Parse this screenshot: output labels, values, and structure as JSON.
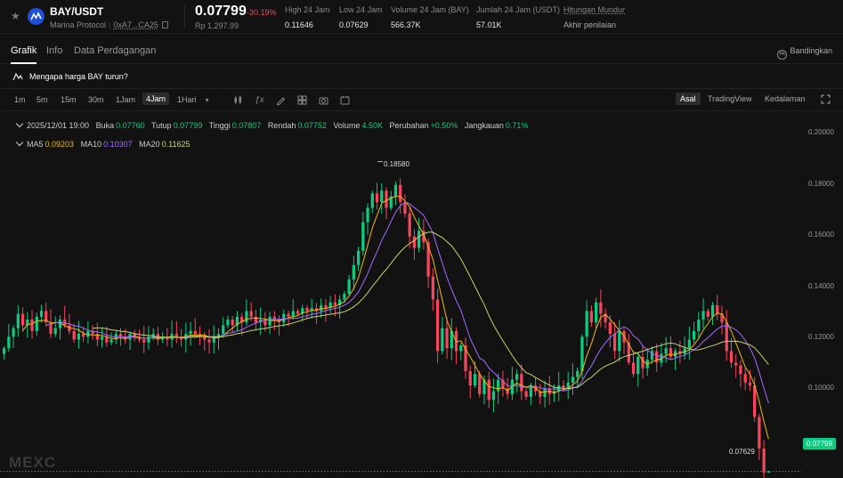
{
  "header": {
    "pair": "BAY/USDT",
    "protocol": "Marina Protocol",
    "address": "0xA7...CA25",
    "price": "0.07799",
    "change": "-30.19%",
    "idr_price": "Rp 1,297.99",
    "stats": [
      {
        "label": "High 24 Jam",
        "value": "0.11646"
      },
      {
        "label": "Low 24 Jam",
        "value": "0.07629"
      },
      {
        "label": "Volume 24 Jam (BAY)",
        "value": "566.37K"
      },
      {
        "label": "Jumlah 24 Jam (USDT)",
        "value": "57.01K"
      },
      {
        "label": "Hitungan Mundur",
        "value": "Akhir penilaian"
      }
    ]
  },
  "tabs": {
    "items": [
      "Grafik",
      "Info",
      "Data Perdagangan"
    ],
    "active": "Grafik",
    "compare": "Bandingkan",
    "compare_icon": "PK"
  },
  "why": {
    "text": "Mengapa harga BAY turun?"
  },
  "toolbar": {
    "timeframes": [
      "1m",
      "5m",
      "15m",
      "30m",
      "1Jam",
      "4Jam",
      "1Hari"
    ],
    "active_timeframe": "4Jam",
    "tools": [
      "candle-type-icon",
      "indicator-icon",
      "draw-icon",
      "layout-icon",
      "camera-icon",
      "settings-icon"
    ],
    "views": [
      "Asal",
      "TradingView",
      "Kedalaman"
    ],
    "active_view": "Asal"
  },
  "ohlc": {
    "date": "2025/12/01 19:00",
    "buka_label": "Buka",
    "buka": "0.07760",
    "tutup_label": "Tutup",
    "tutup": "0.07799",
    "tinggi_label": "Tinggi",
    "tinggi": "0.07807",
    "rendah_label": "Rendah",
    "rendah": "0.07752",
    "volume_label": "Volume",
    "volume": "4.50K",
    "perubahan_label": "Perubahan",
    "perubahan": "+0.50%",
    "jangkauan_label": "Jangkauan",
    "jangkauan": "0.71%"
  },
  "ma": {
    "ma5_label": "MA5",
    "ma5": "0.09203",
    "ma10_label": "MA10",
    "ma10": "0.10307",
    "ma20_label": "MA20",
    "ma20": "0.11625"
  },
  "chart_data": {
    "type": "candlestick",
    "y_ticks": [
      "0.20000",
      "0.18000",
      "0.16000",
      "0.14000",
      "0.12000",
      "0.10000"
    ],
    "ylim": [
      0.0757,
      0.2034
    ],
    "last_price": "0.07799",
    "high_marker": "0.18580",
    "low_marker": "0.07629",
    "watermark": "MEXC",
    "colors": {
      "up": "#0ecb81",
      "down": "#f6465d",
      "ma5": "#f0b90b",
      "ma10": "#a06bff",
      "ma20": "#c8d26e"
    },
    "closes": [
      0.121,
      0.125,
      0.128,
      0.133,
      0.129,
      0.131,
      0.127,
      0.132,
      0.134,
      0.13,
      0.126,
      0.128,
      0.131,
      0.129,
      0.127,
      0.124,
      0.126,
      0.125,
      0.127,
      0.126,
      0.124,
      0.125,
      0.123,
      0.124,
      0.126,
      0.125,
      0.124,
      0.126,
      0.125,
      0.124,
      0.123,
      0.125,
      0.126,
      0.124,
      0.125,
      0.124,
      0.126,
      0.125,
      0.124,
      0.126,
      0.127,
      0.126,
      0.125,
      0.124,
      0.123,
      0.125,
      0.126,
      0.129,
      0.131,
      0.129,
      0.132,
      0.13,
      0.134,
      0.132,
      0.13,
      0.131,
      0.129,
      0.132,
      0.131,
      0.13,
      0.133,
      0.132,
      0.134,
      0.133,
      0.135,
      0.134,
      0.135,
      0.134,
      0.136,
      0.135,
      0.137,
      0.136,
      0.138,
      0.14,
      0.145,
      0.15,
      0.155,
      0.165,
      0.17,
      0.175,
      0.172,
      0.176,
      0.17,
      0.174,
      0.178,
      0.172,
      0.168,
      0.16,
      0.156,
      0.162,
      0.158,
      0.146,
      0.138,
      0.12,
      0.128,
      0.121,
      0.127,
      0.12,
      0.122,
      0.113,
      0.108,
      0.112,
      0.105,
      0.11,
      0.103,
      0.106,
      0.11,
      0.107,
      0.105,
      0.11,
      0.112,
      0.106,
      0.104,
      0.108,
      0.106,
      0.104,
      0.107,
      0.105,
      0.106,
      0.108,
      0.107,
      0.109,
      0.111,
      0.113,
      0.125,
      0.134,
      0.13,
      0.137,
      0.133,
      0.13,
      0.126,
      0.12,
      0.127,
      0.123,
      0.116,
      0.112,
      0.118,
      0.114,
      0.117,
      0.12,
      0.116,
      0.119,
      0.121,
      0.118,
      0.12,
      0.119,
      0.121,
      0.124,
      0.127,
      0.131,
      0.134,
      0.132,
      0.136,
      0.133,
      0.13,
      0.12,
      0.116,
      0.115,
      0.112,
      0.109,
      0.108,
      0.097,
      0.086,
      0.0776,
      0.07799
    ]
  }
}
